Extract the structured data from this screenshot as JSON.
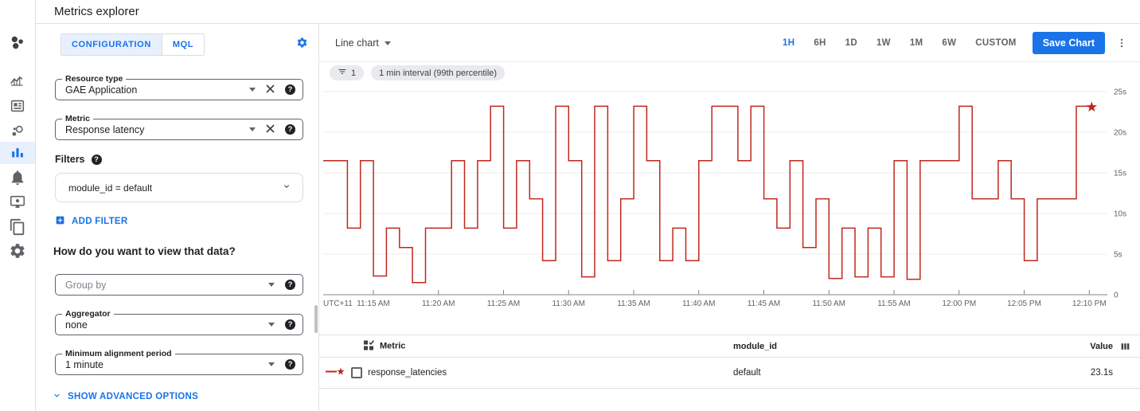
{
  "header": {
    "title": "Metrics explorer"
  },
  "sidebar": {
    "icons": [
      "monitoring-logo",
      "overview",
      "dashboards",
      "services",
      "metrics-explorer",
      "alerting",
      "uptime-checks",
      "groups",
      "settings"
    ],
    "active": "metrics-explorer"
  },
  "config": {
    "tabs": [
      {
        "label": "CONFIGURATION"
      },
      {
        "label": "MQL"
      }
    ],
    "active_tab": "CONFIGURATION",
    "resource_type": {
      "label": "Resource type",
      "value": "GAE Application"
    },
    "metric": {
      "label": "Metric",
      "value": "Response latency"
    },
    "filters": {
      "label": "Filters",
      "value": "module_id = default",
      "add_label": "ADD FILTER"
    },
    "view_heading": "How do you want to view that data?",
    "group_by": {
      "placeholder": "Group by"
    },
    "aggregator": {
      "label": "Aggregator",
      "value": "none"
    },
    "min_alignment_period": {
      "label": "Minimum alignment period",
      "value": "1 minute"
    },
    "advanced_label": "SHOW ADVANCED OPTIONS"
  },
  "toolbar": {
    "chart_type": "Line chart",
    "time_ranges": [
      "1H",
      "6H",
      "1D",
      "1W",
      "1M",
      "6W",
      "CUSTOM"
    ],
    "active_range": "1H",
    "save_label": "Save Chart"
  },
  "chips": {
    "filter_count": "1",
    "interval": "1 min interval (99th percentile)"
  },
  "chart_data": {
    "type": "line",
    "style": "step-after",
    "unit": "seconds",
    "timezone_label": "UTC+11",
    "x_start": "11:12 AM",
    "x_interval_minutes": 1,
    "x_tick_labels": [
      "11:15 AM",
      "11:20 AM",
      "11:25 AM",
      "11:30 AM",
      "11:35 AM",
      "11:40 AM",
      "11:45 AM",
      "11:50 AM",
      "11:55 AM",
      "12:00 PM",
      "12:05 PM",
      "12:10 PM"
    ],
    "y_ticks": [
      {
        "value": 0,
        "label": "0"
      },
      {
        "value": 5,
        "label": "5s"
      },
      {
        "value": 10,
        "label": "10s"
      },
      {
        "value": 15,
        "label": "15s"
      },
      {
        "value": 20,
        "label": "20s"
      },
      {
        "value": 25,
        "label": "25s"
      }
    ],
    "ylim": [
      0,
      25
    ],
    "grid": true,
    "legend_position": "table-below",
    "end_marker": "star",
    "series": [
      {
        "name": "response_latencies",
        "module_id": "default",
        "color": "#c0271d",
        "values": [
          16.5,
          8.2,
          16.5,
          2.3,
          8.2,
          5.8,
          1.5,
          8.2,
          8.2,
          16.5,
          8.2,
          16.5,
          23.2,
          8.2,
          16.5,
          11.8,
          4.2,
          23.2,
          16.5,
          2.2,
          23.2,
          4.2,
          11.8,
          23.2,
          16.5,
          4.2,
          8.2,
          4.2,
          16.5,
          23.2,
          23.2,
          16.5,
          23.2,
          11.8,
          8.2,
          16.5,
          5.8,
          11.8,
          2.0,
          8.2,
          2.2,
          8.2,
          2.2,
          16.5,
          1.9,
          16.5,
          16.5,
          16.5,
          23.2,
          11.8,
          11.8,
          16.5,
          11.8,
          4.2,
          11.8,
          11.8,
          11.8,
          23.2,
          23.1
        ]
      }
    ]
  },
  "table": {
    "columns": [
      "Metric",
      "module_id",
      "Value"
    ],
    "rows": [
      {
        "metric": "response_latencies",
        "module_id": "default",
        "value": "23.1s"
      }
    ]
  },
  "colors": {
    "accent": "#1a73e8",
    "series_red": "#c0271d",
    "active_tab_bg": "#e8f0fe",
    "chip_bg": "#e8eaed"
  }
}
